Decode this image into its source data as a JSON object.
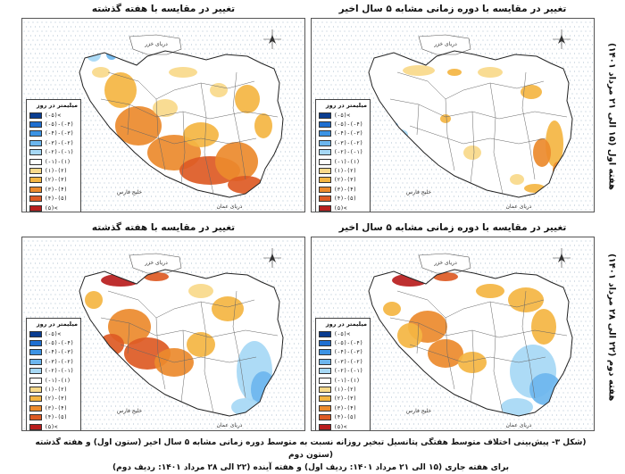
{
  "row_labels": [
    "هفته اول (۱۵ الی ۲۱ مرداد ۱۴۰۱)",
    "هفته دوم (۲۲ الی ۲۸ مرداد ۱۴۰۱)"
  ],
  "panels": [
    {
      "title": "تغییر در مقایسه با دوره زمانی مشابه ۵ سال اخیر"
    },
    {
      "title": "تغییر در مقایسه با هفته گذشته"
    },
    {
      "title": "تغییر در مقایسه با دوره زمانی مشابه ۵ سال اخیر"
    },
    {
      "title": "تغییر در مقایسه با هفته گذشته"
    }
  ],
  "map_labels": {
    "caspian": "دریای خزر",
    "oman": "دریای عمان",
    "gulf": "خلیج فارس"
  },
  "legend": {
    "title": "میلیمتر در روز",
    "items": [
      {
        "label": "(-۵)<",
        "color": "#0a3d91"
      },
      {
        "label": "(-۵)-(-۴)",
        "color": "#1f6fd1"
      },
      {
        "label": "(-۴)-(-۳)",
        "color": "#3b93e4"
      },
      {
        "label": "(-۳)-(-۲)",
        "color": "#6cb6ee"
      },
      {
        "label": "(-۲)-(-۱)",
        "color": "#a6d8f5"
      },
      {
        "label": "(-۱)-(۱)",
        "color": "#ffffff"
      },
      {
        "label": "(۱)-(۲)",
        "color": "#f8d98a"
      },
      {
        "label": "(۲)-(۳)",
        "color": "#f4b542"
      },
      {
        "label": "(۳)-(۴)",
        "color": "#ec8a2c"
      },
      {
        "label": "(۴)-(۵)",
        "color": "#dd5a24"
      },
      {
        "label": "(۵)<",
        "color": "#b81d1d"
      }
    ]
  },
  "caption": [
    "(شکل ۳- پیش‌بینی اختلاف متوسط هفتگی پتانسیل تبخیر روزانه نسبت به متوسط دوره زمانی مشابه ۵ سال اخیر (ستون اول) و هفته گذشته (ستون دوم",
    "برای هفته جاری (۱۵ الی ۲۱ مرداد ۱۴۰۱: ردیف اول) و هفته آینده (۲۲ الی ۲۸ مرداد ۱۴۰۱: ردیف دوم)"
  ]
}
